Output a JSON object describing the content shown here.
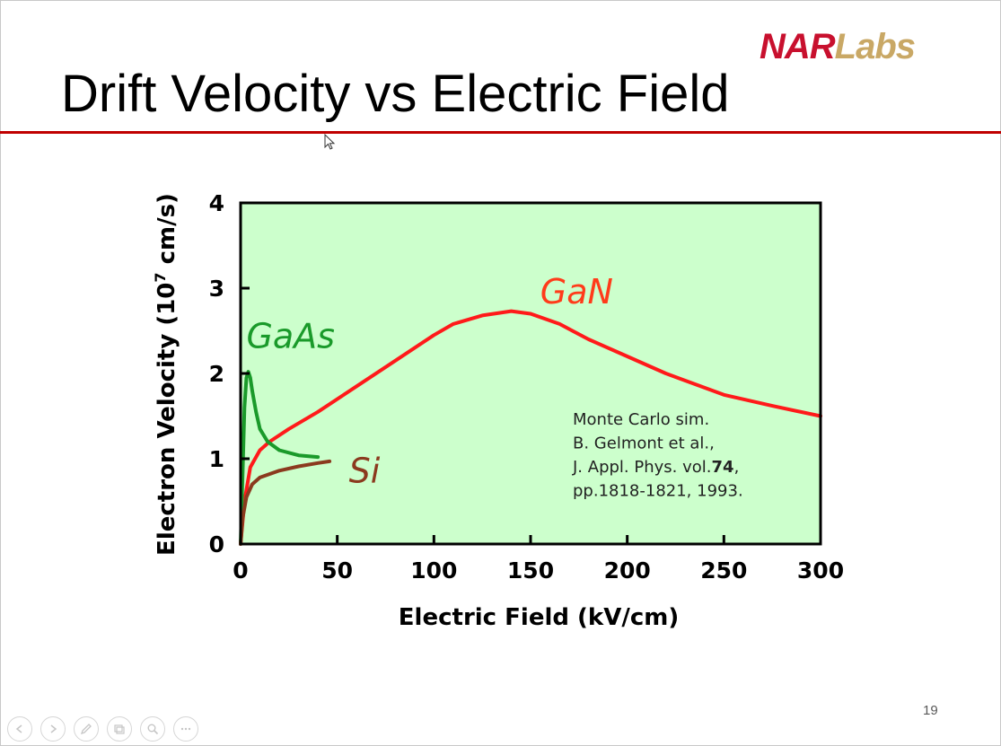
{
  "slide": {
    "title": "Drift Velocity vs Electric Field",
    "logo_text_red": "NAR",
    "logo_text_gold": "Labs",
    "page_number": "19",
    "accent_color": "#c00000",
    "colors": {
      "rule": "#c00000",
      "logo_red": "#c8102e",
      "logo_gold": "#c9a865"
    }
  },
  "nav": {
    "buttons": [
      {
        "name": "previous-slide-button",
        "icon": "arrow-left-icon"
      },
      {
        "name": "next-slide-button",
        "icon": "arrow-right-icon"
      },
      {
        "name": "pen-tool-button",
        "icon": "pen-icon"
      },
      {
        "name": "slides-overview-button",
        "icon": "slides-icon"
      },
      {
        "name": "zoom-button",
        "icon": "magnifier-icon"
      },
      {
        "name": "more-options-button",
        "icon": "ellipsis-icon"
      }
    ]
  },
  "chart_data": {
    "type": "line",
    "xlabel": "Electric Field (kV/cm)",
    "ylabel_main": "Electron Velocity (10",
    "ylabel_sup": "7",
    "ylabel_end": " cm/s)",
    "xlim": [
      0,
      300
    ],
    "ylim": [
      0,
      4
    ],
    "xticks": [
      0,
      50,
      100,
      150,
      200,
      250,
      300
    ],
    "yticks": [
      0,
      1,
      2,
      3,
      4
    ],
    "grid": false,
    "background": "#ccffcc",
    "series": [
      {
        "name": "GaN",
        "color": "#ff1a1a",
        "points": [
          [
            0,
            0
          ],
          [
            2,
            0.5
          ],
          [
            5,
            0.9
          ],
          [
            10,
            1.1
          ],
          [
            15,
            1.2
          ],
          [
            25,
            1.35
          ],
          [
            40,
            1.55
          ],
          [
            60,
            1.85
          ],
          [
            80,
            2.15
          ],
          [
            100,
            2.45
          ],
          [
            110,
            2.58
          ],
          [
            125,
            2.68
          ],
          [
            140,
            2.73
          ],
          [
            150,
            2.7
          ],
          [
            165,
            2.58
          ],
          [
            180,
            2.4
          ],
          [
            200,
            2.2
          ],
          [
            220,
            2.0
          ],
          [
            250,
            1.75
          ],
          [
            275,
            1.62
          ],
          [
            300,
            1.5
          ]
        ]
      },
      {
        "name": "GaAs",
        "color": "#1a9a2a",
        "points": [
          [
            0,
            0
          ],
          [
            1,
            0.8
          ],
          [
            2,
            1.6
          ],
          [
            3,
            1.95
          ],
          [
            4,
            2.02
          ],
          [
            5,
            1.95
          ],
          [
            6,
            1.8
          ],
          [
            8,
            1.55
          ],
          [
            10,
            1.35
          ],
          [
            14,
            1.2
          ],
          [
            20,
            1.1
          ],
          [
            30,
            1.04
          ],
          [
            40,
            1.02
          ]
        ]
      },
      {
        "name": "Si",
        "color": "#8b3a1e",
        "points": [
          [
            0,
            0
          ],
          [
            1,
            0.3
          ],
          [
            3,
            0.55
          ],
          [
            6,
            0.7
          ],
          [
            10,
            0.78
          ],
          [
            20,
            0.86
          ],
          [
            30,
            0.91
          ],
          [
            40,
            0.95
          ],
          [
            46,
            0.97
          ]
        ]
      }
    ],
    "series_labels": [
      {
        "text": "GaN",
        "x": 155,
        "y": 2.82,
        "color": "#ff3b1a"
      },
      {
        "text": "GaAs",
        "x": 3,
        "y": 2.3,
        "color": "#1a9a2a"
      },
      {
        "text": "Si",
        "x": 56,
        "y": 0.72,
        "color": "#8b3a1e"
      }
    ],
    "annotation": {
      "lines": [
        {
          "parts": [
            {
              "text": "Monte Carlo sim.",
              "bold": false
            }
          ]
        },
        {
          "parts": [
            {
              "text": "B. Gelmont et al.,",
              "bold": false
            }
          ]
        },
        {
          "parts": [
            {
              "text": "J. Appl. Phys. vol.",
              "bold": false
            },
            {
              "text": "74",
              "bold": true
            },
            {
              "text": ",",
              "bold": false
            }
          ]
        },
        {
          "parts": [
            {
              "text": "pp.1818-1821, 1993.",
              "bold": false
            }
          ]
        }
      ]
    }
  }
}
